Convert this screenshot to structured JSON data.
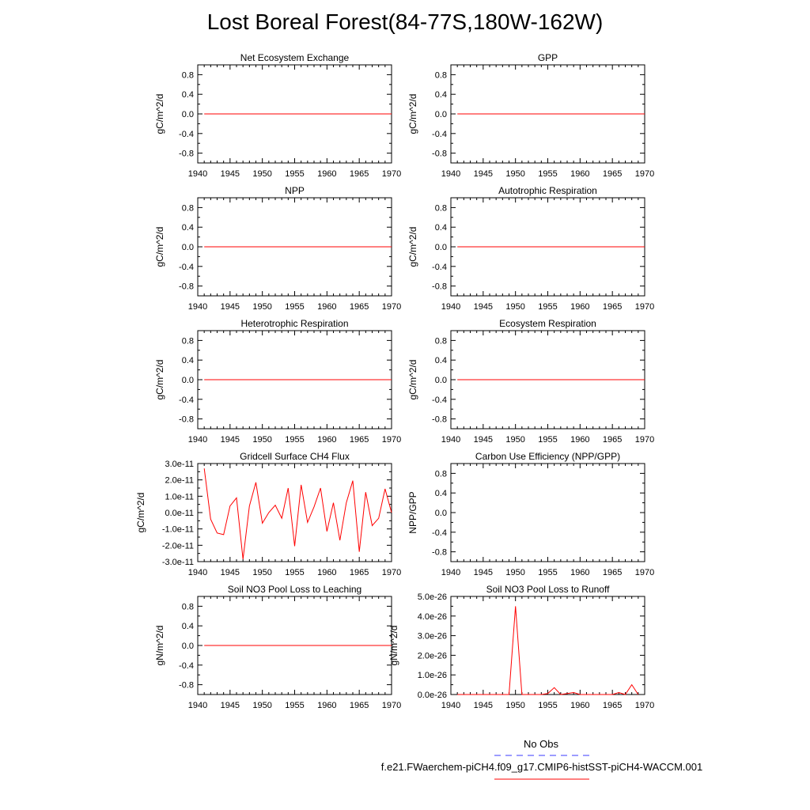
{
  "title": "Lost Boreal Forest(84-77S,180W-162W)",
  "legend": {
    "entries": [
      {
        "label": "No Obs",
        "color": "#3a3aff",
        "dash": "dashed"
      },
      {
        "label": "f.e21.FWaerchem-piCH4.f09_g17.CMIP6-histSST-piCH4-WACCM.001",
        "color": "#ff0000",
        "dash": "solid"
      }
    ]
  },
  "chart_data": [
    {
      "type": "line",
      "title": "Net Ecosystem Exchange",
      "ylabel": "gC/m^2/d",
      "xlim": [
        1940,
        1970
      ],
      "ylim": [
        -1,
        1
      ],
      "xticks": [
        "1940",
        "1945",
        "1950",
        "1955",
        "1960",
        "1965",
        "1970"
      ],
      "yticks": [
        "0.8",
        "0.4",
        "0.0",
        "-0.4",
        "-0.8"
      ],
      "ytick_values": [
        0.8,
        0.4,
        0,
        -0.4,
        -0.8
      ],
      "series": [
        {
          "color": "#ff0000",
          "x": [
            1941,
            1970
          ],
          "y": [
            0,
            0
          ]
        }
      ]
    },
    {
      "type": "line",
      "title": "GPP",
      "ylabel": "gC/m^2/d",
      "xlim": [
        1940,
        1970
      ],
      "ylim": [
        -1,
        1
      ],
      "xticks": [
        "1940",
        "1945",
        "1950",
        "1955",
        "1960",
        "1965",
        "1970"
      ],
      "yticks": [
        "0.8",
        "0.4",
        "0.0",
        "-0.4",
        "-0.8"
      ],
      "ytick_values": [
        0.8,
        0.4,
        0,
        -0.4,
        -0.8
      ],
      "series": [
        {
          "color": "#ff0000",
          "x": [
            1941,
            1970
          ],
          "y": [
            0,
            0
          ]
        }
      ]
    },
    {
      "type": "line",
      "title": "NPP",
      "ylabel": "gC/m^2/d",
      "xlim": [
        1940,
        1970
      ],
      "ylim": [
        -1,
        1
      ],
      "xticks": [
        "1940",
        "1945",
        "1950",
        "1955",
        "1960",
        "1965",
        "1970"
      ],
      "yticks": [
        "0.8",
        "0.4",
        "0.0",
        "-0.4",
        "-0.8"
      ],
      "ytick_values": [
        0.8,
        0.4,
        0,
        -0.4,
        -0.8
      ],
      "series": [
        {
          "color": "#ff0000",
          "x": [
            1941,
            1970
          ],
          "y": [
            0,
            0
          ]
        }
      ]
    },
    {
      "type": "line",
      "title": "Autotrophic Respiration",
      "ylabel": "gC/m^2/d",
      "xlim": [
        1940,
        1970
      ],
      "ylim": [
        -1,
        1
      ],
      "xticks": [
        "1940",
        "1945",
        "1950",
        "1955",
        "1960",
        "1965",
        "1970"
      ],
      "yticks": [
        "0.8",
        "0.4",
        "0.0",
        "-0.4",
        "-0.8"
      ],
      "ytick_values": [
        0.8,
        0.4,
        0,
        -0.4,
        -0.8
      ],
      "series": [
        {
          "color": "#ff0000",
          "x": [
            1941,
            1970
          ],
          "y": [
            0,
            0
          ]
        }
      ]
    },
    {
      "type": "line",
      "title": "Heterotrophic Respiration",
      "ylabel": "gC/m^2/d",
      "xlim": [
        1940,
        1970
      ],
      "ylim": [
        -1,
        1
      ],
      "xticks": [
        "1940",
        "1945",
        "1950",
        "1955",
        "1960",
        "1965",
        "1970"
      ],
      "yticks": [
        "0.8",
        "0.4",
        "0.0",
        "-0.4",
        "-0.8"
      ],
      "ytick_values": [
        0.8,
        0.4,
        0,
        -0.4,
        -0.8
      ],
      "series": [
        {
          "color": "#ff0000",
          "x": [
            1941,
            1970
          ],
          "y": [
            0,
            0
          ]
        }
      ]
    },
    {
      "type": "line",
      "title": "Ecosystem Respiration",
      "ylabel": "gC/m^2/d",
      "xlim": [
        1940,
        1970
      ],
      "ylim": [
        -1,
        1
      ],
      "xticks": [
        "1940",
        "1945",
        "1950",
        "1955",
        "1960",
        "1965",
        "1970"
      ],
      "yticks": [
        "0.8",
        "0.4",
        "0.0",
        "-0.4",
        "-0.8"
      ],
      "ytick_values": [
        0.8,
        0.4,
        0,
        -0.4,
        -0.8
      ],
      "series": [
        {
          "color": "#ff0000",
          "x": [
            1941,
            1970
          ],
          "y": [
            0,
            0
          ]
        }
      ]
    },
    {
      "type": "line",
      "title": "Gridcell Surface CH4 Flux",
      "ylabel": "gC/m^2/d",
      "xlim": [
        1940,
        1970
      ],
      "ylim": [
        -3e-11,
        3e-11
      ],
      "xticks": [
        "1940",
        "1945",
        "1950",
        "1955",
        "1960",
        "1965",
        "1970"
      ],
      "yticks": [
        "3.0e-11",
        "2.0e-11",
        "1.0e-11",
        "0.0e-11",
        "-1.0e-11",
        "-2.0e-11",
        "-3.0e-11"
      ],
      "ytick_values": [
        3e-11,
        2e-11,
        1e-11,
        0,
        -1e-11,
        -2e-11,
        -3e-11
      ],
      "series": [
        {
          "color": "#ff0000",
          "x": [
            1941,
            1942,
            1943,
            1944,
            1945,
            1946,
            1947,
            1948,
            1949,
            1950,
            1951,
            1952,
            1953,
            1954,
            1955,
            1956,
            1957,
            1958,
            1959,
            1960,
            1961,
            1962,
            1963,
            1964,
            1965,
            1966,
            1967,
            1968,
            1969,
            1970
          ],
          "y": [
            2.7e-11,
            -4e-12,
            -1.25e-11,
            -1.35e-11,
            4e-12,
            9e-12,
            -2.85e-11,
            4e-12,
            1.85e-11,
            -6.5e-12,
            0,
            4.5e-12,
            -3.5e-12,
            1.5e-11,
            -2.05e-11,
            1.7e-11,
            -6e-12,
            3.5e-12,
            1.5e-11,
            -1.15e-11,
            6e-12,
            -1.7e-11,
            6e-12,
            1.95e-11,
            -2.4e-11,
            1.25e-11,
            -8e-12,
            -3.5e-12,
            1.45e-11,
            0
          ]
        }
      ]
    },
    {
      "type": "line",
      "title": "Carbon Use Efficiency (NPP/GPP)",
      "ylabel": "NPP/GPP",
      "xlim": [
        1940,
        1970
      ],
      "ylim": [
        -1,
        1
      ],
      "xticks": [
        "1940",
        "1945",
        "1950",
        "1955",
        "1960",
        "1965",
        "1970"
      ],
      "yticks": [
        "0.8",
        "0.4",
        "0.0",
        "-0.4",
        "-0.8"
      ],
      "ytick_values": [
        0.8,
        0.4,
        0,
        -0.4,
        -0.8
      ],
      "series": []
    },
    {
      "type": "line",
      "title": "Soil NO3 Pool Loss to Leaching",
      "ylabel": "gN/m^2/d",
      "xlim": [
        1940,
        1970
      ],
      "ylim": [
        -1,
        1
      ],
      "xticks": [
        "1940",
        "1945",
        "1950",
        "1955",
        "1960",
        "1965",
        "1970"
      ],
      "yticks": [
        "0.8",
        "0.4",
        "0.0",
        "-0.4",
        "-0.8"
      ],
      "ytick_values": [
        0.8,
        0.4,
        0,
        -0.4,
        -0.8
      ],
      "series": [
        {
          "color": "#ff0000",
          "x": [
            1941,
            1970
          ],
          "y": [
            0,
            0
          ]
        }
      ]
    },
    {
      "type": "line",
      "title": "Soil NO3 Pool Loss to Runoff",
      "ylabel": "gN/m^2/d",
      "xlim": [
        1940,
        1970
      ],
      "ylim": [
        0,
        5e-26
      ],
      "xticks": [
        "1940",
        "1945",
        "1950",
        "1955",
        "1960",
        "1965",
        "1970"
      ],
      "yticks": [
        "5.0e-26",
        "4.0e-26",
        "3.0e-26",
        "2.0e-26",
        "1.0e-26",
        "0.0e-26"
      ],
      "ytick_values": [
        5e-26,
        4e-26,
        3e-26,
        2e-26,
        1e-26,
        0
      ],
      "series": [
        {
          "color": "#ff0000",
          "x": [
            1941,
            1942,
            1943,
            1944,
            1945,
            1946,
            1947,
            1948,
            1949,
            1950,
            1951,
            1952,
            1953,
            1954,
            1955,
            1956,
            1957,
            1958,
            1959,
            1960,
            1961,
            1962,
            1963,
            1964,
            1965,
            1966,
            1967,
            1968,
            1969
          ],
          "y": [
            0,
            0,
            0,
            0,
            0,
            0,
            0,
            0,
            0,
            4.5e-26,
            0,
            0,
            0,
            0,
            5e-28,
            3.5e-27,
            0,
            5e-28,
            1e-27,
            0,
            0,
            0,
            0,
            0,
            0,
            1e-27,
            0,
            5e-27,
            0
          ]
        }
      ]
    }
  ]
}
